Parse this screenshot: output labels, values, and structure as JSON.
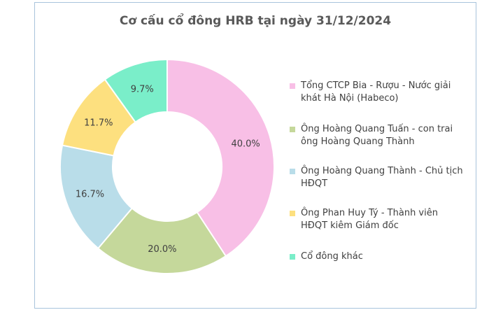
{
  "chart_data": {
    "type": "pie",
    "title": "Cơ cấu cổ đông HRB tại ngày 31/12/2024",
    "donut": true,
    "legend_position": "right",
    "slices": [
      {
        "label": "Tổng CTCP Bia - Rượu - Nước giải khát Hà Nội (Habeco)",
        "value": 40.0,
        "display": "40.0%",
        "color": "#f8bfe6"
      },
      {
        "label": "Ông Hoàng Quang Tuấn - con trai ông Hoàng Quang Thành",
        "value": 20.0,
        "display": "20.0%",
        "color": "#c5d89b"
      },
      {
        "label": "Ông Hoàng Quang Thành - Chủ tịch HĐQT",
        "value": 16.7,
        "display": "16.7%",
        "color": "#b9dde9"
      },
      {
        "label": "Ông Phan Huy Tý - Thành viên HĐQT kiêm Giám đốc",
        "value": 11.7,
        "display": "11.7%",
        "color": "#fde07f"
      },
      {
        "label": "Cổ đông khác",
        "value": 9.7,
        "display": "9.7%",
        "color": "#7aeec9"
      }
    ]
  }
}
